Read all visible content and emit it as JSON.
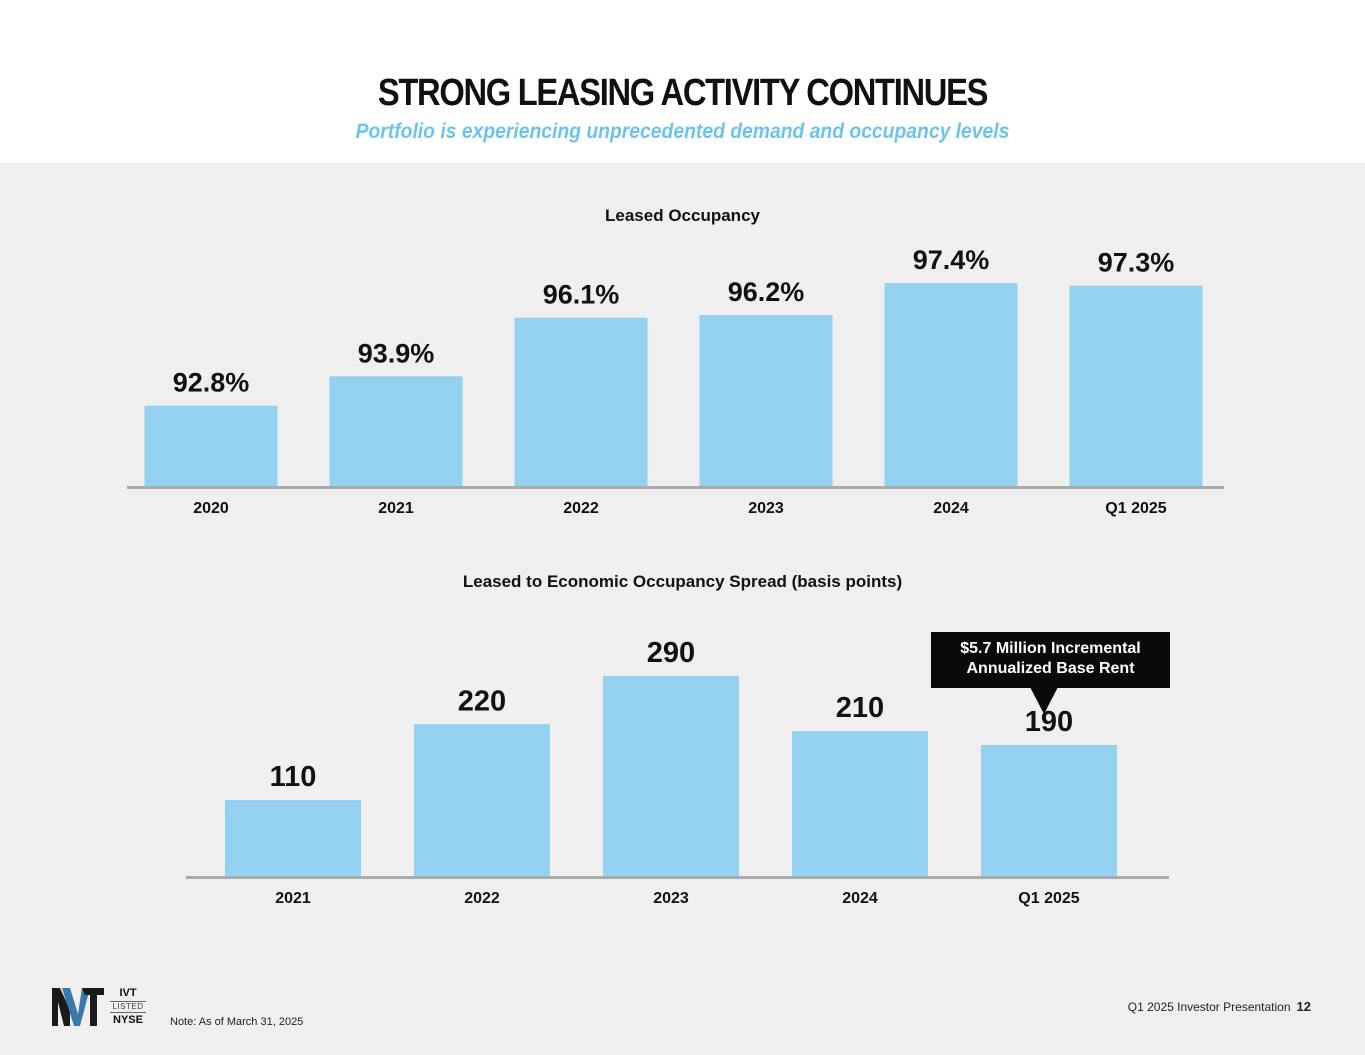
{
  "header": {
    "title": "STRONG LEASING ACTIVITY CONTINUES",
    "subtitle": "Portfolio is experiencing unprecedented demand and occupancy levels"
  },
  "colors": {
    "bar": "#94d1f1",
    "subtitle": "#6cc3eb",
    "axis": "#aaaaaa",
    "logo_dark": "#1a1a1a",
    "logo_blue": "#3a78ad"
  },
  "chart_data": [
    {
      "type": "bar",
      "title": "Leased Occupancy",
      "categories": [
        "2020",
        "2021",
        "2022",
        "2023",
        "2024",
        "Q1 2025"
      ],
      "values": [
        92.8,
        93.9,
        96.1,
        96.2,
        97.4,
        97.3
      ],
      "labels": [
        "92.8%",
        "93.9%",
        "96.1%",
        "96.2%",
        "97.4%",
        "97.3%"
      ],
      "unit": "%",
      "ylim": [
        91.4,
        97.4
      ],
      "xlabel": "",
      "ylabel": "",
      "grid": false
    },
    {
      "type": "bar",
      "title": "Leased to Economic Occupancy Spread (basis points)",
      "categories": [
        "2021",
        "2022",
        "2023",
        "2024",
        "Q1 2025"
      ],
      "values": [
        110,
        220,
        290,
        210,
        190
      ],
      "labels": [
        "110",
        "220",
        "290",
        "210",
        "190"
      ],
      "unit": "basis points",
      "ylim": [
        0,
        290
      ],
      "xlabel": "",
      "ylabel": "",
      "grid": false,
      "annotation": {
        "category": "Q1 2025",
        "lines": [
          "$5.7 Million Incremental",
          "Annualized Base Rent"
        ]
      }
    }
  ],
  "footer": {
    "logo_label": "IVT logo",
    "ticker": "IVT",
    "listed": "LISTED",
    "exchange": "NYSE",
    "note": "Note: As of March 31, 2025",
    "presentation": "Q1 2025 Investor Presentation",
    "page_number": "12"
  }
}
